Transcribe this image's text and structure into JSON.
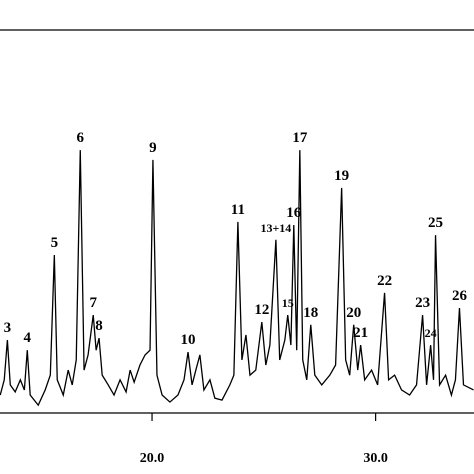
{
  "chart_data": {
    "type": "line",
    "x": [
      13.21,
      13.39,
      13.53,
      13.66,
      13.88,
      14.11,
      14.29,
      14.42,
      14.55,
      14.91,
      15.22,
      15.45,
      15.63,
      15.76,
      16.03,
      16.25,
      16.43,
      16.61,
      16.79,
      16.96,
      17.14,
      17.37,
      17.5,
      17.63,
      17.77,
      18.04,
      18.3,
      18.57,
      18.84,
      19.02,
      19.2,
      19.46,
      19.69,
      19.91,
      20.04,
      20.22,
      20.45,
      20.8,
      21.16,
      21.43,
      21.61,
      21.79,
      21.96,
      22.14,
      22.32,
      22.59,
      22.81,
      23.13,
      23.48,
      23.66,
      23.84,
      24.02,
      24.2,
      24.38,
      24.64,
      24.91,
      25.09,
      25.27,
      25.54,
      25.71,
      25.94,
      26.07,
      26.21,
      26.34,
      26.47,
      26.61,
      26.74,
      26.92,
      27.1,
      27.28,
      27.59,
      27.95,
      28.21,
      28.48,
      28.66,
      28.84,
      29.02,
      29.2,
      29.33,
      29.51,
      29.82,
      30.09,
      30.4,
      30.58,
      30.85,
      31.16,
      31.52,
      31.83,
      32.1,
      32.28,
      32.46,
      32.59,
      32.68,
      32.86,
      33.13,
      33.39,
      33.57,
      33.75,
      33.93,
      34.38
    ],
    "series": [
      {
        "color": "#000000",
        "values": [
          6.4,
          10.3,
          20.5,
          9.0,
          7.2,
          10.3,
          7.7,
          17.9,
          6.4,
          3.8,
          7.7,
          11.5,
          42.3,
          10.3,
          6.4,
          12.8,
          9.0,
          15.4,
          69.2,
          12.8,
          16.7,
          26.9,
          17.9,
          21.0,
          11.5,
          9.0,
          6.4,
          10.3,
          7.2,
          12.8,
          9.7,
          14.1,
          16.7,
          17.9,
          66.7,
          11.5,
          6.4,
          4.6,
          6.4,
          10.3,
          17.4,
          9.0,
          12.8,
          16.7,
          7.7,
          10.3,
          5.6,
          5.1,
          9.0,
          11.5,
          50.8,
          15.4,
          21.8,
          11.5,
          12.8,
          25.1,
          14.1,
          19.2,
          46.2,
          15.4,
          20.5,
          26.9,
          19.2,
          50.0,
          17.9,
          69.2,
          15.4,
          10.3,
          24.4,
          11.5,
          9.0,
          11.5,
          14.1,
          59.5,
          15.4,
          11.5,
          24.4,
          12.8,
          19.2,
          10.3,
          12.8,
          9.0,
          32.6,
          10.3,
          11.5,
          7.7,
          6.4,
          9.0,
          26.9,
          9.0,
          19.2,
          10.3,
          47.4,
          9.0,
          11.5,
          6.4,
          10.3,
          28.7,
          9.0,
          7.7
        ]
      }
    ],
    "annotations": [
      {
        "text": "3",
        "x": 13.53
      },
      {
        "text": "4",
        "x": 14.42
      },
      {
        "text": "5",
        "x": 15.63
      },
      {
        "text": "6",
        "x": 16.79
      },
      {
        "text": "7",
        "x": 17.37
      },
      {
        "text": "8",
        "x": 17.63
      },
      {
        "text": "9",
        "x": 20.04
      },
      {
        "text": "10",
        "x": 21.61
      },
      {
        "text": "11",
        "x": 23.84
      },
      {
        "text": "12",
        "x": 24.91
      },
      {
        "text": "13+14",
        "x": 25.54
      },
      {
        "text": "15",
        "x": 26.07
      },
      {
        "text": "16",
        "x": 26.34
      },
      {
        "text": "17",
        "x": 26.61
      },
      {
        "text": "18",
        "x": 27.1
      },
      {
        "text": "19",
        "x": 28.48
      },
      {
        "text": "20",
        "x": 29.02
      },
      {
        "text": "21",
        "x": 29.33
      },
      {
        "text": "22",
        "x": 30.4
      },
      {
        "text": "23",
        "x": 32.1
      },
      {
        "text": "24",
        "x": 32.46
      },
      {
        "text": "25",
        "x": 32.68
      },
      {
        "text": "26",
        "x": 33.75
      }
    ],
    "xlim": [
      13.2,
      34.4
    ],
    "ylim": [
      0,
      100
    ],
    "xticks": [
      {
        "value": 20,
        "label": "20.0"
      },
      {
        "value": 30,
        "label": "30.0"
      }
    ]
  }
}
